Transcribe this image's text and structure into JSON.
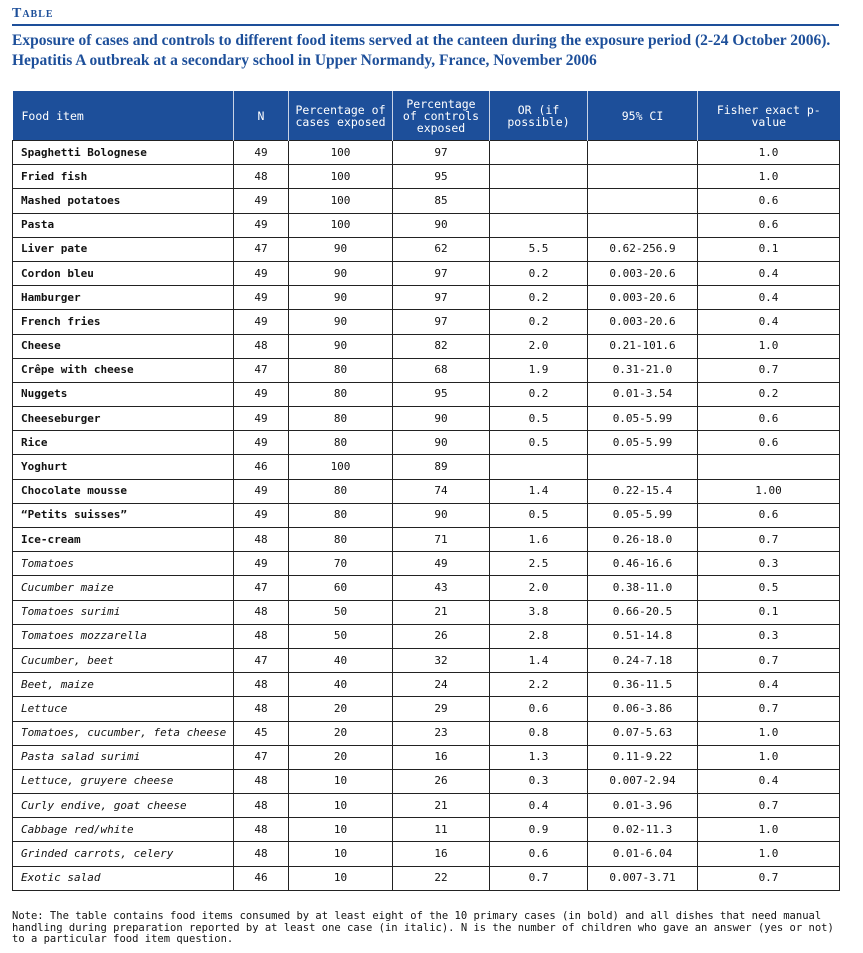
{
  "label": "Table",
  "title": "Exposure of cases and controls to different food items served at the canteen during the exposure period (2-24 October 2006). Hepatitis A outbreak at a secondary school in Upper Normandy, France, November 2006",
  "columns": [
    "Food item",
    "N",
    "Percentage of cases exposed",
    "Percentage of controls exposed",
    "OR (if possible)",
    "95% CI",
    "Fisher exact p-value"
  ],
  "rows": [
    {
      "style": "bold",
      "cells": [
        "Spaghetti Bolognese",
        "49",
        "100",
        "97",
        "",
        "",
        "1.0"
      ]
    },
    {
      "style": "bold",
      "cells": [
        "Fried fish",
        "48",
        "100",
        "95",
        "",
        "",
        "1.0"
      ]
    },
    {
      "style": "bold",
      "cells": [
        "Mashed potatoes",
        "49",
        "100",
        "85",
        "",
        "",
        "0.6"
      ]
    },
    {
      "style": "bold",
      "cells": [
        "Pasta",
        "49",
        "100",
        "90",
        "",
        "",
        "0.6"
      ]
    },
    {
      "style": "bold",
      "cells": [
        "Liver pate",
        "47",
        "90",
        "62",
        "5.5",
        "0.62-256.9",
        "0.1"
      ]
    },
    {
      "style": "bold",
      "cells": [
        "Cordon bleu",
        "49",
        "90",
        "97",
        "0.2",
        "0.003-20.6",
        "0.4"
      ]
    },
    {
      "style": "bold",
      "cells": [
        "Hamburger",
        "49",
        "90",
        "97",
        "0.2",
        "0.003-20.6",
        "0.4"
      ]
    },
    {
      "style": "bold",
      "cells": [
        "French fries",
        "49",
        "90",
        "97",
        "0.2",
        "0.003-20.6",
        "0.4"
      ]
    },
    {
      "style": "bold",
      "cells": [
        "Cheese",
        "48",
        "90",
        "82",
        "2.0",
        "0.21-101.6",
        "1.0"
      ]
    },
    {
      "style": "bold",
      "cells": [
        "Crêpe with cheese",
        "47",
        "80",
        "68",
        "1.9",
        "0.31-21.0",
        "0.7"
      ]
    },
    {
      "style": "bold",
      "cells": [
        "Nuggets",
        "49",
        "80",
        "95",
        "0.2",
        "0.01-3.54",
        "0.2"
      ]
    },
    {
      "style": "bold",
      "cells": [
        "Cheeseburger",
        "49",
        "80",
        "90",
        "0.5",
        "0.05-5.99",
        "0.6"
      ]
    },
    {
      "style": "bold",
      "cells": [
        "Rice",
        "49",
        "80",
        "90",
        "0.5",
        "0.05-5.99",
        "0.6"
      ]
    },
    {
      "style": "bold",
      "cells": [
        "Yoghurt",
        "46",
        "100",
        "89",
        "",
        "",
        ""
      ]
    },
    {
      "style": "bold",
      "cells": [
        "Chocolate mousse",
        "49",
        "80",
        "74",
        "1.4",
        "0.22-15.4",
        "1.00"
      ]
    },
    {
      "style": "bold",
      "cells": [
        "“Petits suisses”",
        "49",
        "80",
        "90",
        "0.5",
        "0.05-5.99",
        "0.6"
      ]
    },
    {
      "style": "bold",
      "cells": [
        "Ice-cream",
        "48",
        "80",
        "71",
        "1.6",
        "0.26-18.0",
        "0.7"
      ]
    },
    {
      "style": "italic",
      "cells": [
        "Tomatoes",
        "49",
        "70",
        "49",
        "2.5",
        "0.46-16.6",
        "0.3"
      ]
    },
    {
      "style": "italic",
      "cells": [
        "Cucumber maize",
        "47",
        "60",
        "43",
        "2.0",
        "0.38-11.0",
        "0.5"
      ]
    },
    {
      "style": "italic",
      "cells": [
        "Tomatoes surimi",
        "48",
        "50",
        "21",
        "3.8",
        "0.66-20.5",
        "0.1"
      ]
    },
    {
      "style": "italic",
      "cells": [
        "Tomatoes mozzarella",
        "48",
        "50",
        "26",
        "2.8",
        "0.51-14.8",
        "0.3"
      ]
    },
    {
      "style": "italic",
      "cells": [
        "Cucumber, beet",
        "47",
        "40",
        "32",
        "1.4",
        "0.24-7.18",
        "0.7"
      ]
    },
    {
      "style": "italic",
      "cells": [
        "Beet, maize",
        "48",
        "40",
        "24",
        "2.2",
        "0.36-11.5",
        "0.4"
      ]
    },
    {
      "style": "italic",
      "cells": [
        "Lettuce",
        "48",
        "20",
        "29",
        "0.6",
        "0.06-3.86",
        "0.7"
      ]
    },
    {
      "style": "italic",
      "cells": [
        "Tomatoes, cucumber, feta cheese",
        "45",
        "20",
        "23",
        "0.8",
        "0.07-5.63",
        "1.0"
      ]
    },
    {
      "style": "italic",
      "cells": [
        "Pasta salad surimi",
        "47",
        "20",
        "16",
        "1.3",
        "0.11-9.22",
        "1.0"
      ]
    },
    {
      "style": "italic",
      "cells": [
        "Lettuce, gruyere cheese",
        "48",
        "10",
        "26",
        "0.3",
        "0.007-2.94",
        "0.4"
      ]
    },
    {
      "style": "italic",
      "cells": [
        "Curly endive, goat cheese",
        "48",
        "10",
        "21",
        "0.4",
        "0.01-3.96",
        "0.7"
      ]
    },
    {
      "style": "italic",
      "cells": [
        "Cabbage red/white",
        "48",
        "10",
        "11",
        "0.9",
        "0.02-11.3",
        "1.0"
      ]
    },
    {
      "style": "italic",
      "cells": [
        "Grinded carrots, celery",
        "48",
        "10",
        "16",
        "0.6",
        "0.01-6.04",
        "1.0"
      ]
    },
    {
      "style": "italic",
      "cells": [
        "Exotic salad",
        "46",
        "10",
        "22",
        "0.7",
        "0.007-3.71",
        "0.7"
      ]
    }
  ],
  "note": "Note: The table contains food items consumed by at least eight of the 10 primary cases (in bold) and all dishes that need manual handling during preparation reported by at least one case (in italic). N is the number of children who gave an answer (yes or not) to a particular food item question.",
  "colors": {
    "accent": "#1d4f9a",
    "header_text": "#ffffff",
    "text": "#111111"
  }
}
